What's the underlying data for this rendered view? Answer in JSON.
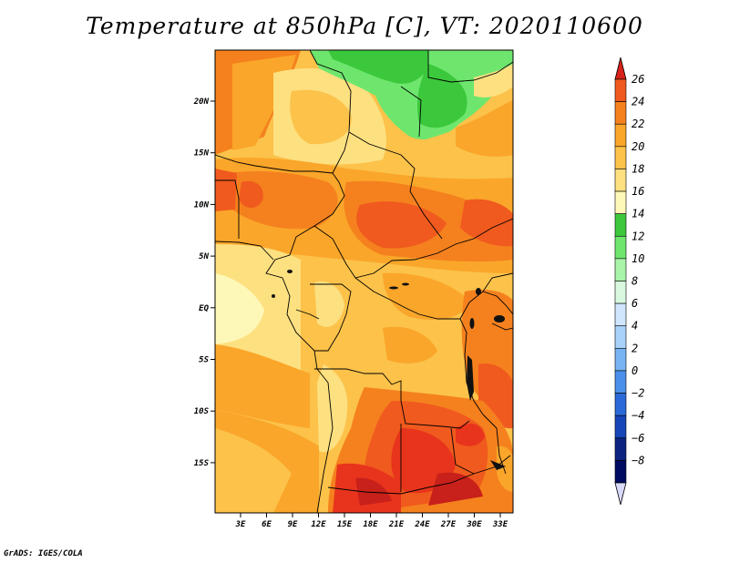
{
  "title": "Temperature at 850hPa [C], VT: 2020110600",
  "credit": "GrADS: IGES/COLA",
  "map": {
    "region": "Central Africa",
    "variable": "Temperature at 850hPa",
    "units": "C",
    "lon_range": [
      0,
      35
    ],
    "lat_range": [
      -20,
      24
    ],
    "lat_ticks": [
      "20N",
      "15N",
      "10N",
      "5N",
      "EQ",
      "5S",
      "10S",
      "15S"
    ],
    "lon_ticks": [
      "3E",
      "6E",
      "9E",
      "12E",
      "15E",
      "18E",
      "21E",
      "24E",
      "27E",
      "30E",
      "33E"
    ]
  },
  "colorbar": {
    "labels": [
      "26",
      "24",
      "22",
      "20",
      "18",
      "16",
      "14",
      "12",
      "10",
      "8",
      "6",
      "4",
      "2",
      "0",
      "−2",
      "−4",
      "−6",
      "−8"
    ],
    "colors": [
      "#e8341c",
      "#f05a1e",
      "#f5811e",
      "#faa62a",
      "#fcc24a",
      "#fde080",
      "#fef8b8",
      "#3cc83c",
      "#6ee66e",
      "#a8f4a8",
      "#d8f8e0",
      "#cfe6fc",
      "#a8d2fa",
      "#78b4f4",
      "#4a90ea",
      "#2a6ad8",
      "#1646b8",
      "#0c2480",
      "#000a60"
    ],
    "top_arrow_color": "#d6221a",
    "bottom_arrow_color": "#d8d8f8"
  }
}
